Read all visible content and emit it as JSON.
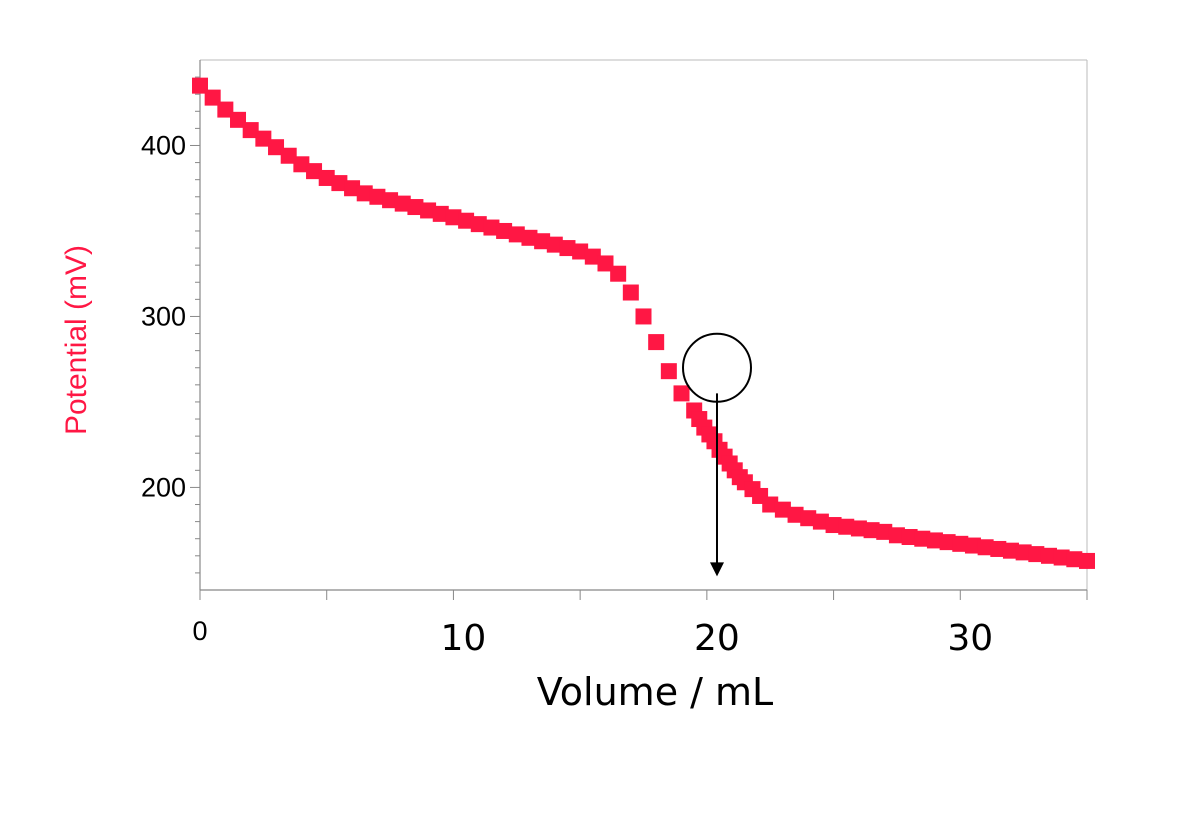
{
  "chart_data": {
    "type": "scatter",
    "title": "",
    "xlabel": "Volume / mL",
    "ylabel": "Potential (mV)",
    "xlim": [
      0,
      35
    ],
    "ylim": [
      140,
      450
    ],
    "x_ticks": [
      0,
      10,
      20,
      30
    ],
    "x_tick_labels": [
      "0",
      "10",
      "20",
      "30"
    ],
    "y_ticks": [
      200,
      300,
      400
    ],
    "y_tick_labels": [
      "200",
      "300",
      "400"
    ],
    "grid": false,
    "legend": "none",
    "series": [
      {
        "color": "#FF1744",
        "marker": "square",
        "x": [
          0,
          0.5,
          1,
          1.5,
          2,
          2.5,
          3,
          3.5,
          4,
          4.5,
          5,
          5.5,
          6,
          6.5,
          7,
          7.5,
          8,
          8.5,
          9,
          9.5,
          10,
          10.5,
          11,
          11.5,
          12,
          12.5,
          13,
          13.5,
          14,
          14.5,
          15,
          15.5,
          16,
          16.5,
          17,
          17.5,
          18,
          18.5,
          19,
          19.5,
          19.7,
          19.9,
          20.1,
          20.3,
          20.5,
          20.7,
          20.9,
          21.1,
          21.3,
          21.5,
          21.8,
          22.1,
          22.5,
          23,
          23.5,
          24,
          24.5,
          25,
          25.5,
          26,
          26.5,
          27,
          27.5,
          28,
          28.5,
          29,
          29.5,
          30,
          30.5,
          31,
          31.5,
          32,
          32.5,
          33,
          33.5,
          34,
          34.5,
          35
        ],
        "y": [
          435,
          428,
          421,
          415,
          409,
          404,
          399,
          394,
          389,
          385,
          381,
          378,
          375,
          372,
          370,
          368,
          366,
          364,
          362,
          360,
          358,
          356,
          354,
          352,
          350,
          348,
          346,
          344,
          342,
          340,
          338,
          335,
          331,
          325,
          314,
          300,
          285,
          268,
          255,
          245,
          240,
          235,
          231,
          227,
          222,
          218,
          214,
          210,
          206,
          203,
          199,
          195,
          190,
          187,
          184,
          182,
          180,
          178,
          177,
          176,
          175,
          174,
          172,
          171,
          170,
          169,
          168,
          167,
          166,
          165,
          164,
          163,
          162,
          161,
          160,
          159,
          158,
          157
        ]
      }
    ],
    "annotations": [
      {
        "type": "circle",
        "x": 20.4,
        "y": 270
      },
      {
        "type": "arrow",
        "x": 20.4,
        "y_from": 255,
        "y_to": 148
      }
    ]
  },
  "colors": {
    "series": "#FF1744",
    "ylabel": "#FF1744",
    "axis": "#888888",
    "frame": "#bbbbbb",
    "annotation": "#000000"
  }
}
